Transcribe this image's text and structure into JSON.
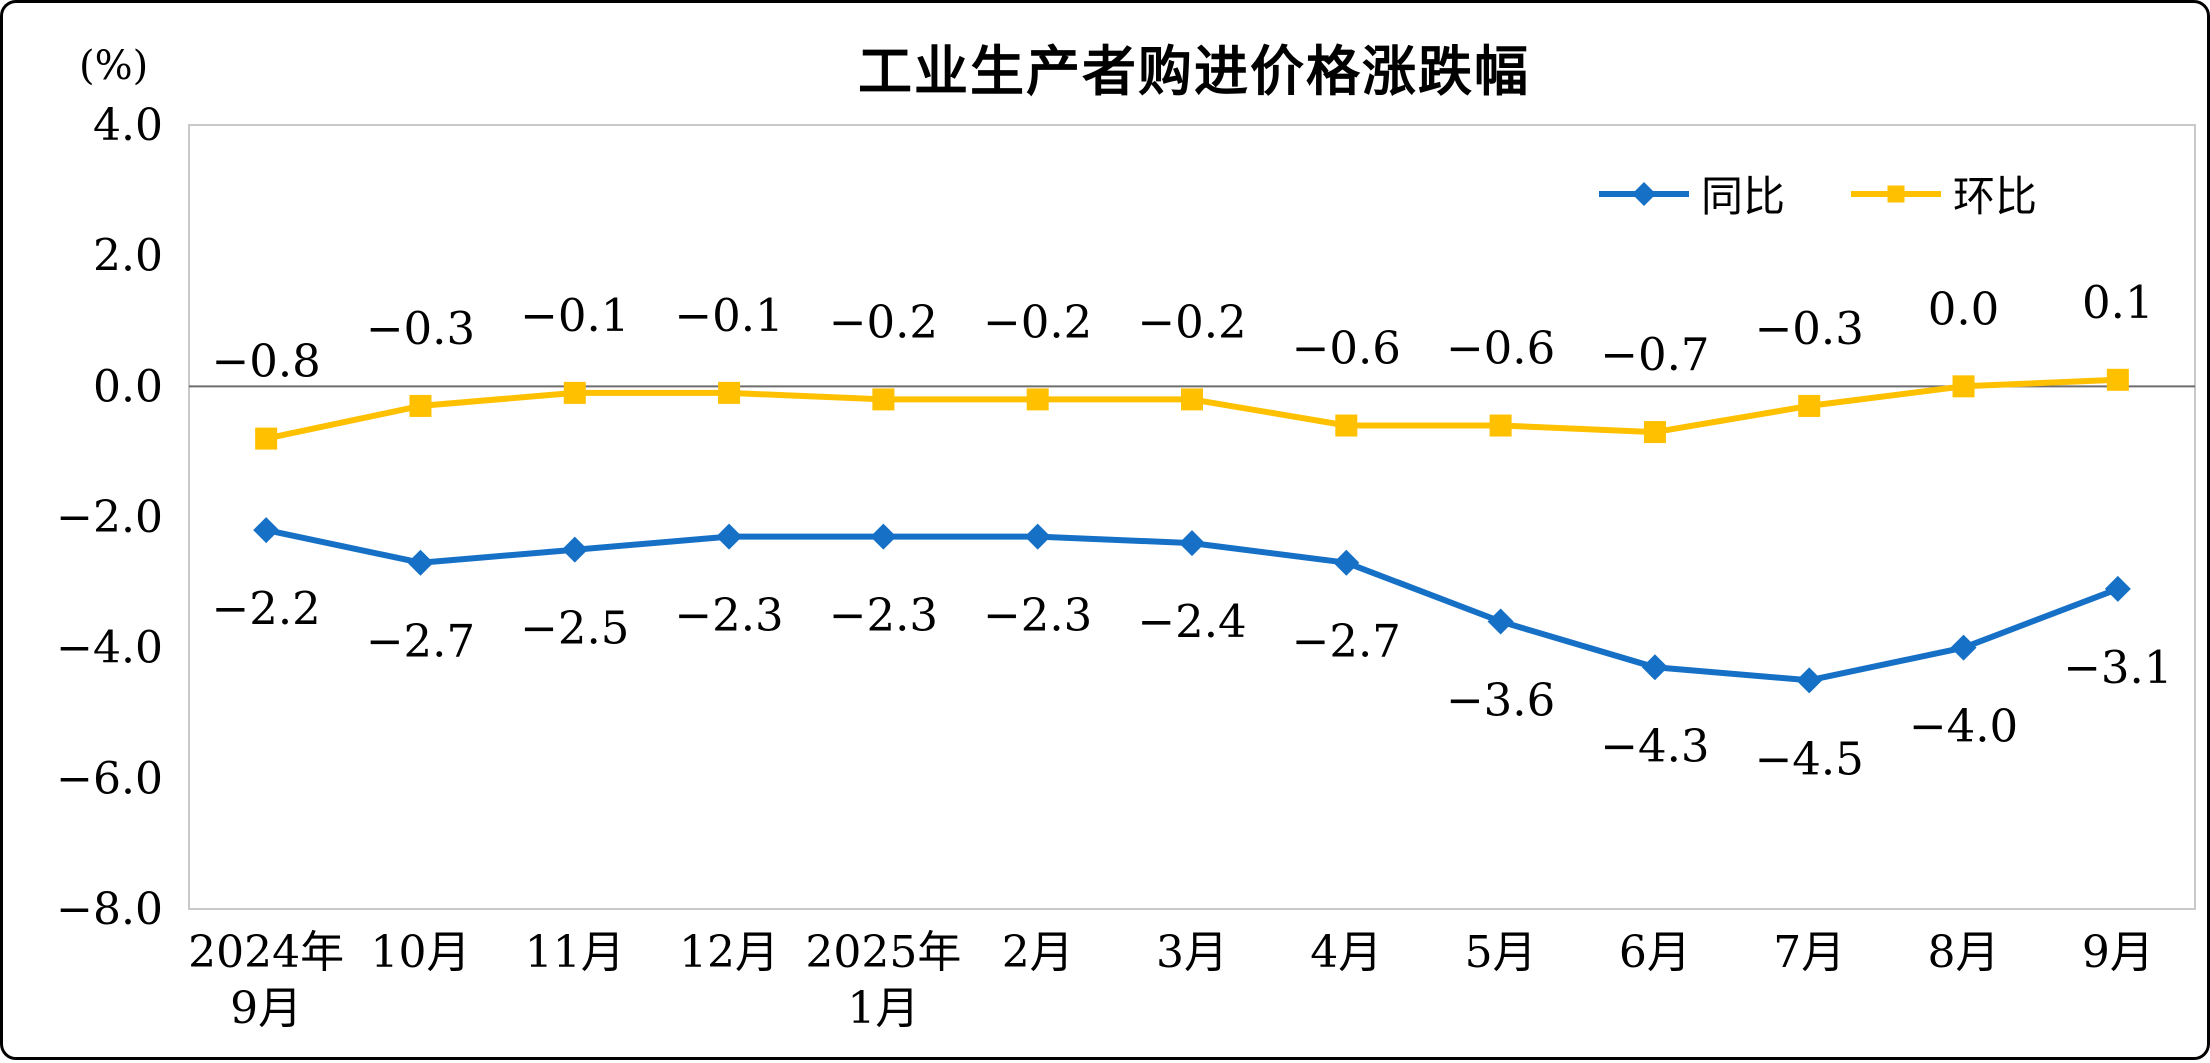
{
  "chart_data": {
    "type": "line",
    "title": "工业生产者购进价格涨跌幅",
    "ylabel": "(%)",
    "xlabel": "",
    "ylim": [
      -8.0,
      4.0
    ],
    "ytick_values": [
      4,
      2,
      0,
      -2,
      -4,
      -6,
      -8
    ],
    "ytick_labels": [
      "4.0",
      "2.0",
      "0.0",
      "−2.0",
      "−4.0",
      "−6.0",
      "−8.0"
    ],
    "grid": false,
    "legend_position": "top-right",
    "zero_line": true,
    "categories": [
      [
        "2024年",
        "9月"
      ],
      [
        "10月"
      ],
      [
        "11月"
      ],
      [
        "12月"
      ],
      [
        "2025年",
        "1月"
      ],
      [
        "2月"
      ],
      [
        "3月"
      ],
      [
        "4月"
      ],
      [
        "5月"
      ],
      [
        "6月"
      ],
      [
        "7月"
      ],
      [
        "8月"
      ],
      [
        "9月"
      ]
    ],
    "series": [
      {
        "id": "yoy",
        "name": "同比",
        "color": "#1570C6",
        "marker": "diamond",
        "label_position": "below",
        "values": [
          -2.2,
          -2.7,
          -2.5,
          -2.3,
          -2.3,
          -2.3,
          -2.4,
          -2.7,
          -3.6,
          -4.3,
          -4.5,
          -4.0,
          -3.1
        ],
        "labels": [
          "−2.2",
          "−2.7",
          "−2.5",
          "−2.3",
          "−2.3",
          "−2.3",
          "−2.4",
          "−2.7",
          "−3.6",
          "−4.3",
          "−4.5",
          "−4.0",
          "−3.1"
        ]
      },
      {
        "id": "mom",
        "name": "环比",
        "color": "#FFC000",
        "marker": "square",
        "label_position": "above",
        "values": [
          -0.8,
          -0.3,
          -0.1,
          -0.1,
          -0.2,
          -0.2,
          -0.2,
          -0.6,
          -0.6,
          -0.7,
          -0.3,
          0.0,
          0.1
        ],
        "labels": [
          "−0.8",
          "−0.3",
          "−0.1",
          "−0.1",
          "−0.2",
          "−0.2",
          "−0.2",
          "−0.6",
          "−0.6",
          "−0.7",
          "−0.3",
          "0.0",
          "0.1"
        ]
      }
    ],
    "colors": {
      "plot_border": "#C9C9C9",
      "zero_line": "#6E6E6E",
      "text": "#000000"
    }
  }
}
